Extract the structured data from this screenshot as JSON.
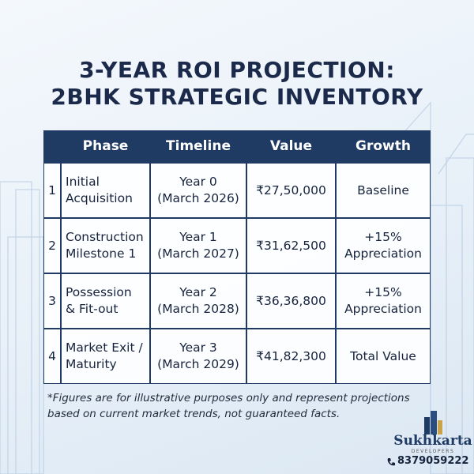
{
  "header": {
    "title_lines": [
      "3-YEAR ROI PROJECTION:",
      "2BHK STRATEGIC INVENTORY"
    ]
  },
  "table": {
    "columns": [
      "Phase",
      "Timeline",
      "Value",
      "Growth"
    ],
    "rows": [
      {
        "number": "1",
        "phase": [
          "Initial",
          "Acquisition"
        ],
        "timeline": [
          "Year 0",
          "(March 2026)"
        ],
        "value": [
          "₹27,50,000"
        ],
        "growth": [
          "Baseline"
        ]
      },
      {
        "number": "2",
        "phase": [
          "Construction",
          "Milestone 1"
        ],
        "timeline": [
          "Year 1",
          "(March 2027)"
        ],
        "value": [
          "₹31,62,500"
        ],
        "growth": [
          "+15%",
          "Appreciation"
        ]
      },
      {
        "number": "3",
        "phase": [
          "Possession",
          "& Fit-out"
        ],
        "timeline": [
          "Year 2",
          "(March 2028)"
        ],
        "value": [
          "₹36,36,800"
        ],
        "growth": [
          "+15%",
          "Appreciation"
        ]
      },
      {
        "number": "4",
        "phase": [
          "Market Exit /",
          "Maturity"
        ],
        "timeline": [
          "Year 3",
          "(March 2029)"
        ],
        "value": [
          "₹41,82,300"
        ],
        "growth": [
          "Total Value"
        ]
      }
    ]
  },
  "footnote": [
    "*Figures are for illustrative purposes only and represent projections",
    "based on current market trends, not guaranteed facts."
  ],
  "brand": {
    "name": "Sukhkarta",
    "tagline": "DEVELOPERS",
    "phone": "8379059222"
  }
}
